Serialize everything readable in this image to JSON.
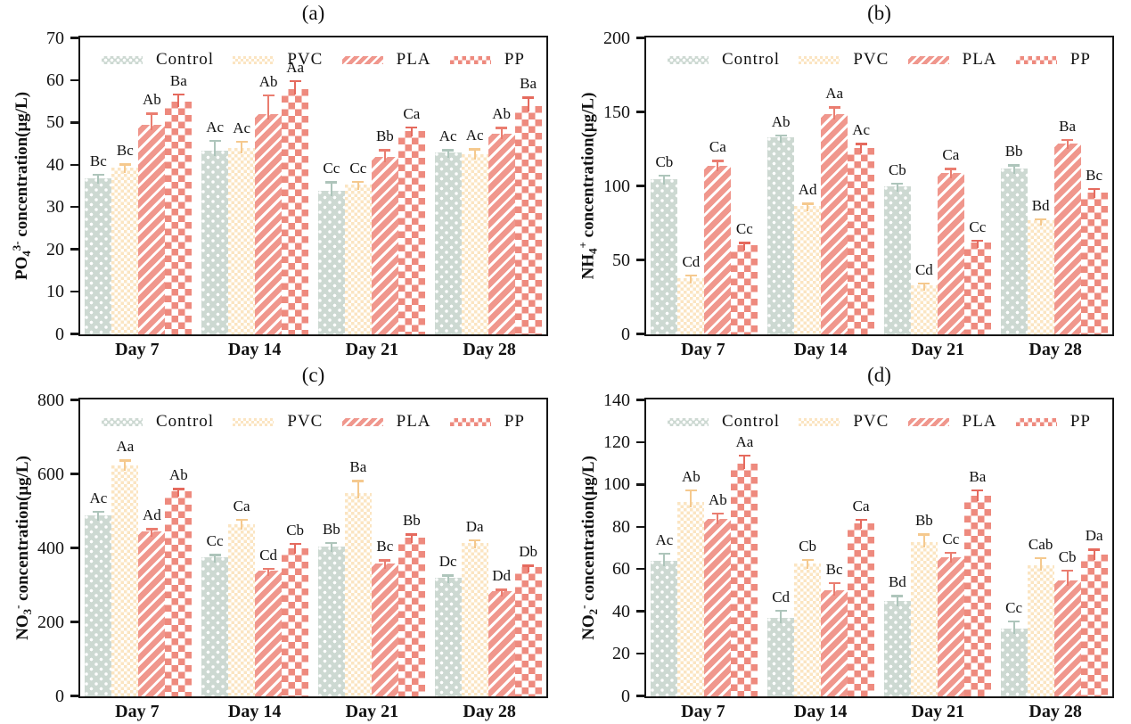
{
  "figure": {
    "background": "#ffffff",
    "axis_color": "#161616",
    "legend": [
      {
        "key": "control",
        "label": "Control",
        "fill": "#cdd9d2",
        "error_color": "#aec5bb"
      },
      {
        "key": "pvc",
        "label": "PVC",
        "fill": "#fbe5c2",
        "error_color": "#f5c98e"
      },
      {
        "key": "pla",
        "label": "PLA",
        "fill": "#f0978d",
        "error_color": "#ea7d70"
      },
      {
        "key": "pp",
        "label": "PP",
        "fill": "#ee8a7e",
        "error_color": "#e56a5e"
      }
    ]
  },
  "chart_data": [
    {
      "id": "a",
      "type": "bar",
      "title": "(a)",
      "ylabel_segments": [
        [
          "t",
          "PO"
        ],
        [
          "sub",
          "4"
        ],
        [
          "sup",
          "3-"
        ],
        [
          "t",
          " concentration(μg/L)"
        ]
      ],
      "ylabel_text": "PO4(3-) concentration(μg/L)",
      "ylim": [
        0,
        70
      ],
      "yticks": [
        0,
        10,
        20,
        30,
        40,
        50,
        60,
        70
      ],
      "categories": [
        "Day 7",
        "Day 14",
        "Day 21",
        "Day 28"
      ],
      "legend_position": "top-inside",
      "grid": false,
      "series": [
        {
          "name": "Control",
          "key": "control",
          "values": [
            37,
            43.5,
            34,
            43
          ],
          "errors": [
            1,
            2.5,
            2.2,
            0.8
          ],
          "sig_labels": [
            "Bc",
            "Ac",
            "Cc",
            "Ac"
          ]
        },
        {
          "name": "PVC",
          "key": "pvc",
          "values": [
            39.5,
            44,
            35.5,
            42.5
          ],
          "errors": [
            0.9,
            1.8,
            0.8,
            1.5
          ],
          "sig_labels": [
            "Bc",
            "Ac",
            "Cc",
            "Ac"
          ]
        },
        {
          "name": "PLA",
          "key": "pla",
          "values": [
            49.5,
            52,
            42,
            47.5
          ],
          "errors": [
            3,
            4.8,
            1.8,
            1.6
          ],
          "sig_labels": [
            "Ab",
            "Ab",
            "Bb",
            "Ab"
          ]
        },
        {
          "name": "PP",
          "key": "pp",
          "values": [
            55,
            58,
            48,
            54
          ],
          "errors": [
            2,
            2.2,
            1.2,
            2.2
          ],
          "sig_labels": [
            "Ba",
            "Aa",
            "Ca",
            "Ba"
          ]
        }
      ]
    },
    {
      "id": "b",
      "type": "bar",
      "title": "(b)",
      "ylabel_segments": [
        [
          "t",
          "NH"
        ],
        [
          "sub",
          "4"
        ],
        [
          "sup",
          "+"
        ],
        [
          "t",
          " concentration(μg/L)"
        ]
      ],
      "ylabel_text": "NH4(+) concentration(μg/L)",
      "ylim": [
        0,
        200
      ],
      "yticks": [
        0,
        50,
        100,
        150,
        200
      ],
      "categories": [
        "Day 7",
        "Day 14",
        "Day 21",
        "Day 28"
      ],
      "legend_position": "top-inside",
      "grid": false,
      "series": [
        {
          "name": "Control",
          "key": "control",
          "values": [
            105,
            133,
            100,
            112
          ],
          "errors": [
            3,
            2,
            2.5,
            3
          ],
          "sig_labels": [
            "Cb",
            "Ab",
            "Cb",
            "Bb"
          ]
        },
        {
          "name": "PVC",
          "key": "pvc",
          "values": [
            38,
            87,
            33,
            77
          ],
          "errors": [
            2.5,
            2,
            2,
            1.5
          ],
          "sig_labels": [
            "Cd",
            "Ad",
            "Cd",
            "Bd"
          ]
        },
        {
          "name": "PLA",
          "key": "pla",
          "values": [
            114,
            149,
            109,
            129
          ],
          "errors": [
            4,
            5,
            3.5,
            3
          ],
          "sig_labels": [
            "Ca",
            "Aa",
            "Ca",
            "Ba"
          ]
        },
        {
          "name": "PP",
          "key": "pp",
          "values": [
            60,
            126,
            62,
            96
          ],
          "errors": [
            2.5,
            3.5,
            2,
            3
          ],
          "sig_labels": [
            "Cc",
            "Ac",
            "Cc",
            "Bc"
          ]
        }
      ]
    },
    {
      "id": "c",
      "type": "bar",
      "title": "(c)",
      "ylabel_segments": [
        [
          "t",
          "NO"
        ],
        [
          "sub",
          "3"
        ],
        [
          "sup",
          "-"
        ],
        [
          "t",
          " concentration(μg/L)"
        ]
      ],
      "ylabel_text": "NO3(-) concentration(μg/L)",
      "ylim": [
        0,
        800
      ],
      "yticks": [
        0,
        200,
        400,
        600,
        800
      ],
      "categories": [
        "Day 7",
        "Day 14",
        "Day 21",
        "Day 28"
      ],
      "legend_position": "top-inside",
      "grid": false,
      "series": [
        {
          "name": "Control",
          "key": "control",
          "values": [
            490,
            375,
            405,
            320
          ],
          "errors": [
            12,
            10,
            12,
            10
          ],
          "sig_labels": [
            "Ac",
            "Cc",
            "Bb",
            "Dc"
          ]
        },
        {
          "name": "PVC",
          "key": "pvc",
          "values": [
            625,
            465,
            550,
            415
          ],
          "errors": [
            15,
            15,
            35,
            10
          ],
          "sig_labels": [
            "Aa",
            "Ca",
            "Ba",
            "Da"
          ]
        },
        {
          "name": "PLA",
          "key": "pla",
          "values": [
            445,
            340,
            360,
            285
          ],
          "errors": [
            10,
            8,
            10,
            6
          ],
          "sig_labels": [
            "Ad",
            "Cd",
            "Bc",
            "Dd"
          ]
        },
        {
          "name": "PP",
          "key": "pp",
          "values": [
            555,
            400,
            430,
            350
          ],
          "errors": [
            8,
            15,
            10,
            6
          ],
          "sig_labels": [
            "Ab",
            "Cb",
            "Bb",
            "Db"
          ]
        }
      ]
    },
    {
      "id": "d",
      "type": "bar",
      "title": "(d)",
      "ylabel_segments": [
        [
          "t",
          "NO"
        ],
        [
          "sub",
          "2"
        ],
        [
          "sup",
          "-"
        ],
        [
          "t",
          " concentration(μg/L)"
        ]
      ],
      "ylabel_text": "NO2(-) concentration(μg/L)",
      "ylim": [
        0,
        140
      ],
      "yticks": [
        0,
        20,
        40,
        60,
        80,
        100,
        120,
        140
      ],
      "categories": [
        "Day 7",
        "Day 14",
        "Day 21",
        "Day 28"
      ],
      "legend_position": "top-inside",
      "grid": false,
      "series": [
        {
          "name": "Control",
          "key": "control",
          "values": [
            64,
            37,
            45,
            32
          ],
          "errors": [
            4,
            4,
            3,
            4
          ],
          "sig_labels": [
            "Ac",
            "Cd",
            "Bd",
            "Cc"
          ]
        },
        {
          "name": "PVC",
          "key": "pvc",
          "values": [
            92,
            63,
            73,
            62
          ],
          "errors": [
            6,
            2,
            4,
            4
          ],
          "sig_labels": [
            "Ab",
            "Cb",
            "Bb",
            "Cab"
          ]
        },
        {
          "name": "PLA",
          "key": "pla",
          "values": [
            84,
            50,
            66,
            55
          ],
          "errors": [
            3,
            4,
            2.5,
            5
          ],
          "sig_labels": [
            "Ab",
            "Bc",
            "Cc",
            "Cb"
          ]
        },
        {
          "name": "PP",
          "key": "pp",
          "values": [
            110,
            82,
            95,
            67
          ],
          "errors": [
            4.5,
            2,
            3,
            3
          ],
          "sig_labels": [
            "Aa",
            "Ca",
            "Ba",
            "Da"
          ]
        }
      ]
    }
  ]
}
